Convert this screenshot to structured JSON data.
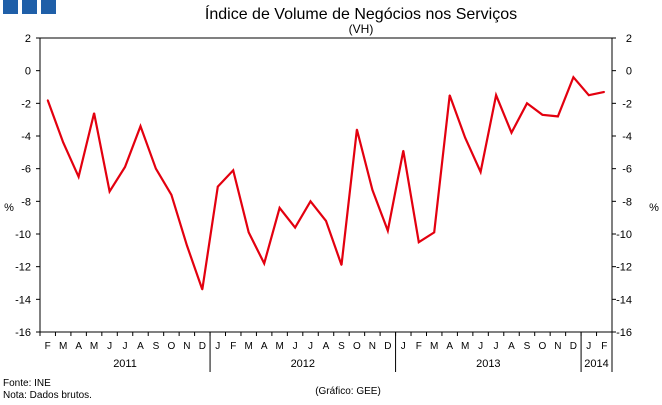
{
  "logo_color": "#1f5fa8",
  "line_color": "#e3000f",
  "chart_data": {
    "type": "line",
    "title": "Índice de Volume de Negócios nos Serviços",
    "subtitle": "(VH)",
    "ylabel_left": "%",
    "ylabel_right": "%",
    "ylim": [
      -16,
      2
    ],
    "yticks": [
      2,
      0,
      -2,
      -4,
      -6,
      -8,
      -10,
      -12,
      -14,
      -16
    ],
    "months": [
      "F",
      "M",
      "A",
      "M",
      "J",
      "J",
      "A",
      "S",
      "O",
      "N",
      "D",
      "J",
      "F",
      "M",
      "A",
      "M",
      "J",
      "J",
      "A",
      "S",
      "O",
      "N",
      "D",
      "J",
      "F",
      "M",
      "A",
      "M",
      "J",
      "J",
      "A",
      "S",
      "O",
      "N",
      "D",
      "J",
      "F"
    ],
    "year_groups": [
      {
        "label": "2011",
        "start": 0,
        "end": 10
      },
      {
        "label": "2012",
        "start": 11,
        "end": 22
      },
      {
        "label": "2013",
        "start": 23,
        "end": 34
      },
      {
        "label": "2014",
        "start": 35,
        "end": 36
      }
    ],
    "series": [
      {
        "name": "VH",
        "values": [
          -1.8,
          -4.4,
          -6.5,
          -2.6,
          -7.4,
          -5.9,
          -3.4,
          -6.0,
          -7.6,
          -10.7,
          -13.4,
          -7.1,
          -6.1,
          -9.9,
          -11.8,
          -8.4,
          -9.6,
          -8.0,
          -9.2,
          -11.9,
          -3.6,
          -7.3,
          -9.8,
          -4.9,
          -10.5,
          -9.9,
          -1.5,
          -4.1,
          -6.2,
          -1.5,
          -3.8,
          -2.0,
          -2.7,
          -2.8,
          -0.4,
          -1.5,
          -1.3
        ]
      }
    ]
  },
  "footer": {
    "source": "Fonte: INE",
    "note": "Nota: Dados brutos.",
    "credit": "(Gráfico: GEE)"
  }
}
